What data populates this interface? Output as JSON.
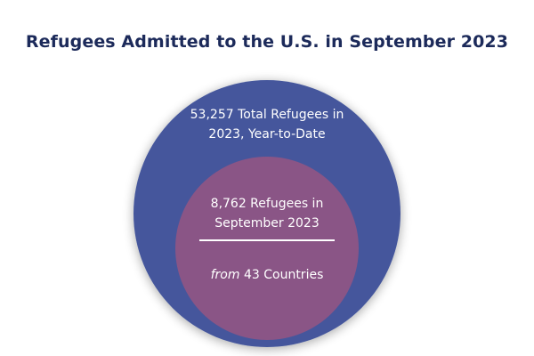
{
  "title": "Refugees Admitted to the U.S. in September 2023",
  "colors": {
    "title": "#1c2a5a",
    "outer_circle": "#44579c",
    "inner_circle": "#8a5586",
    "text": "#ffffff"
  },
  "chart_data": {
    "type": "nested-bubble",
    "title": "Refugees Admitted to the U.S. in September 2023",
    "outer": {
      "value": 53257,
      "label_line1": "53,257 Total Refugees in",
      "label_line2": "2023, Year-to-Date"
    },
    "inner": {
      "value": 8762,
      "label_line1": "8,762 Refugees in",
      "label_line2": "September 2023",
      "note_prefix": "from",
      "note_rest": " 43 Countries",
      "countries": 43
    }
  }
}
